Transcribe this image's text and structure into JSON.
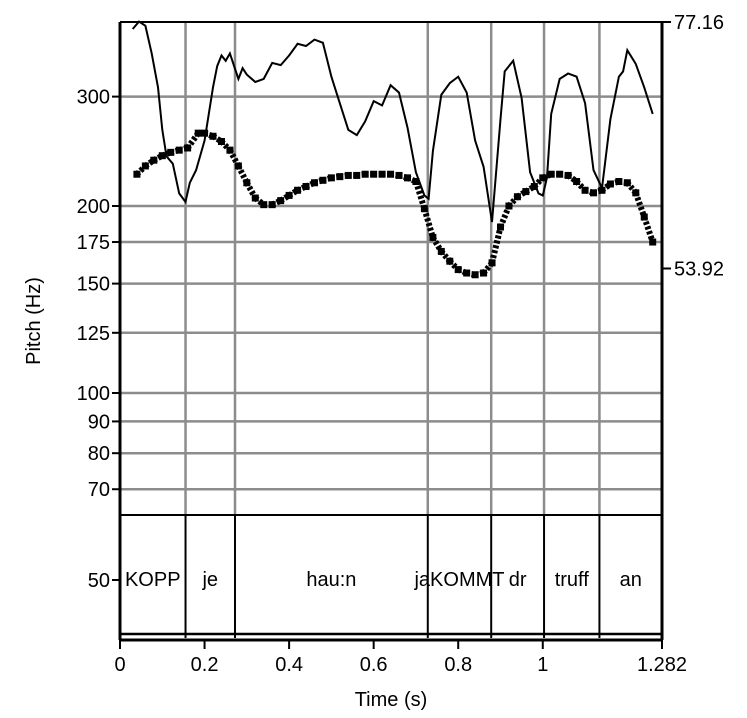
{
  "chart_data": {
    "type": "line",
    "xlabel": "Time (s)",
    "ylabel": "Pitch (Hz)",
    "xlim": [
      0,
      1.282
    ],
    "ylim_pitch_hz": [
      50,
      400
    ],
    "y_scale": "log",
    "grid": true,
    "x_ticks": [
      {
        "value": 0,
        "label": "0"
      },
      {
        "value": 0.2,
        "label": "0.2"
      },
      {
        "value": 0.4,
        "label": "0.4"
      },
      {
        "value": 0.6,
        "label": "0.6"
      },
      {
        "value": 0.8,
        "label": "0.8"
      },
      {
        "value": 1,
        "label": "1"
      },
      {
        "value": 1.282,
        "label": "1.282"
      }
    ],
    "y_ticks_left": [
      {
        "value": 300,
        "label": "300"
      },
      {
        "value": 200,
        "label": "200"
      },
      {
        "value": 175,
        "label": "175"
      },
      {
        "value": 150,
        "label": "150"
      },
      {
        "value": 125,
        "label": "125"
      },
      {
        "value": 100,
        "label": "100"
      },
      {
        "value": 90,
        "label": "90"
      },
      {
        "value": 80,
        "label": "80"
      },
      {
        "value": 70,
        "label": "70"
      },
      {
        "value": 50,
        "label": "50"
      }
    ],
    "y_ticks_right": [
      {
        "value": 77.16,
        "label": "77.16"
      },
      {
        "value": 53.92,
        "label": "53.92"
      }
    ],
    "intensity_range": [
      30.68,
      77.16
    ],
    "series": [
      {
        "kind": "pitch",
        "x": [
          0.04,
          0.06,
          0.08,
          0.1,
          0.12,
          0.14,
          0.16,
          0.185,
          0.2,
          0.22,
          0.24,
          0.26,
          0.28,
          0.3,
          0.32,
          0.34,
          0.36,
          0.38,
          0.4,
          0.42,
          0.44,
          0.46,
          0.48,
          0.5,
          0.52,
          0.54,
          0.56,
          0.58,
          0.6,
          0.62,
          0.64,
          0.66,
          0.68,
          0.7,
          0.72,
          0.74,
          0.76,
          0.78,
          0.8,
          0.82,
          0.84,
          0.86,
          0.88,
          0.9,
          0.92,
          0.94,
          0.96,
          0.98,
          1.0,
          1.02,
          1.04,
          1.06,
          1.08,
          1.1,
          1.12,
          1.14,
          1.16,
          1.18,
          1.2,
          1.22,
          1.24,
          1.26
        ],
        "y": [
          225,
          232,
          237,
          241,
          244,
          246,
          248,
          262,
          262,
          259,
          254,
          246,
          232,
          218,
          206,
          201,
          201,
          204,
          208,
          212,
          215,
          218,
          220,
          222,
          223,
          224,
          224,
          225,
          225,
          225,
          225,
          224,
          222,
          219,
          198,
          178,
          169,
          163,
          158,
          156,
          155,
          156,
          162,
          185,
          200,
          207,
          211,
          215,
          222,
          225,
          225,
          224,
          219,
          212,
          210,
          212,
          217,
          219,
          218,
          210,
          192,
          175
        ]
      },
      {
        "kind": "intensity",
        "x": [
          0.03,
          0.045,
          0.06,
          0.075,
          0.09,
          0.1,
          0.11,
          0.125,
          0.14,
          0.155,
          0.165,
          0.18,
          0.2,
          0.21,
          0.22,
          0.23,
          0.24,
          0.25,
          0.26,
          0.27,
          0.28,
          0.29,
          0.3,
          0.32,
          0.34,
          0.36,
          0.38,
          0.4,
          0.42,
          0.44,
          0.46,
          0.48,
          0.5,
          0.52,
          0.54,
          0.56,
          0.58,
          0.6,
          0.62,
          0.64,
          0.66,
          0.68,
          0.7,
          0.72,
          0.73,
          0.74,
          0.76,
          0.78,
          0.8,
          0.82,
          0.84,
          0.86,
          0.88,
          0.9,
          0.91,
          0.93,
          0.95,
          0.97,
          0.99,
          1.0,
          1.01,
          1.02,
          1.04,
          1.06,
          1.08,
          1.1,
          1.12,
          1.14,
          1.16,
          1.18,
          1.19,
          1.2,
          1.22,
          1.24,
          1.26
        ],
        "y": [
          76.5,
          77.2,
          76.8,
          74.2,
          71.0,
          67.0,
          64.5,
          63.8,
          61.0,
          60.2,
          62.0,
          63.2,
          66.0,
          68.5,
          71.0,
          73.0,
          74.0,
          73.5,
          74.2,
          73.0,
          71.8,
          72.8,
          72.2,
          71.5,
          71.8,
          73.3,
          73.1,
          74.0,
          75.1,
          74.9,
          75.5,
          75.2,
          72.0,
          69.5,
          67.0,
          66.5,
          67.8,
          69.7,
          69.3,
          71.2,
          70.5,
          67.2,
          63.0,
          60.8,
          60.5,
          65.0,
          70.3,
          71.4,
          72.0,
          70.5,
          66.0,
          63.5,
          58.3,
          68.0,
          72.5,
          73.5,
          70.0,
          63.0,
          61.0,
          60.8,
          62.5,
          68.5,
          71.8,
          72.3,
          72.0,
          69.5,
          63.2,
          61.5,
          68.0,
          72.0,
          72.5,
          74.5,
          73.2,
          71.0,
          68.5
        ]
      }
    ],
    "tier": {
      "boundaries": [
        0.155,
        0.272,
        0.728,
        0.878,
        1.003,
        1.134
      ],
      "intervals": [
        {
          "text": "KOPP",
          "start": 0,
          "end": 0.155
        },
        {
          "text": "je",
          "start": 0.155,
          "end": 0.272
        },
        {
          "text": "hau:n",
          "start": 0.272,
          "end": 0.728
        },
        {
          "text": "jaKOMMT",
          "start": 0.728,
          "end": 0.878
        },
        {
          "text": "dr",
          "start": 0.878,
          "end": 1.003
        },
        {
          "text": "truff",
          "start": 1.003,
          "end": 1.134
        },
        {
          "text": "an",
          "start": 1.134,
          "end": 1.282
        }
      ]
    }
  }
}
